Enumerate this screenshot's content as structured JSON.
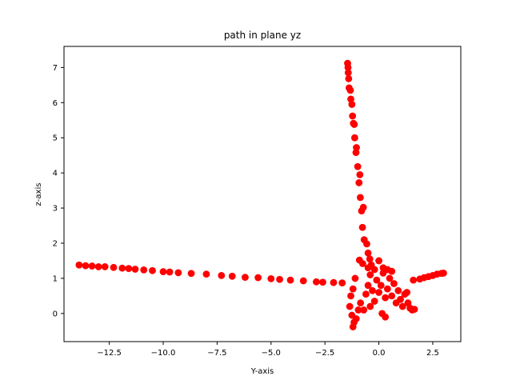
{
  "chart_data": {
    "type": "scatter",
    "title": "path in plane yz",
    "xlabel": "Y-axis",
    "ylabel": "z-axis",
    "xlim": [
      -14.6,
      3.8
    ],
    "ylim": [
      -0.8,
      7.6
    ],
    "xticks": [
      -12.5,
      -10.0,
      -7.5,
      -5.0,
      -2.5,
      0.0,
      2.5
    ],
    "xtick_labels": [
      "−12.5",
      "−10.0",
      "−7.5",
      "−5.0",
      "−2.5",
      "0.0",
      "2.5"
    ],
    "yticks": [
      0,
      1,
      2,
      3,
      4,
      5,
      6,
      7
    ],
    "ytick_labels": [
      "0",
      "1",
      "2",
      "3",
      "4",
      "5",
      "6",
      "7"
    ],
    "grid": false,
    "series": [
      {
        "color": "#ff0000",
        "marker": "circle",
        "points": [
          [
            -13.9,
            1.38
          ],
          [
            -13.6,
            1.36
          ],
          [
            -13.3,
            1.35
          ],
          [
            -13.0,
            1.33
          ],
          [
            -12.7,
            1.33
          ],
          [
            -12.3,
            1.31
          ],
          [
            -11.9,
            1.29
          ],
          [
            -11.6,
            1.28
          ],
          [
            -11.3,
            1.26
          ],
          [
            -10.9,
            1.24
          ],
          [
            -10.5,
            1.22
          ],
          [
            -10.0,
            1.19
          ],
          [
            -9.7,
            1.18
          ],
          [
            -9.3,
            1.16
          ],
          [
            -8.7,
            1.14
          ],
          [
            -8.0,
            1.12
          ],
          [
            -7.3,
            1.08
          ],
          [
            -6.8,
            1.06
          ],
          [
            -6.2,
            1.03
          ],
          [
            -5.6,
            1.02
          ],
          [
            -5.0,
            0.99
          ],
          [
            -4.6,
            0.97
          ],
          [
            -4.1,
            0.95
          ],
          [
            -3.5,
            0.93
          ],
          [
            -2.9,
            0.9
          ],
          [
            -2.6,
            0.89
          ],
          [
            -2.1,
            0.88
          ],
          [
            -1.7,
            0.87
          ],
          [
            -1.45,
            7.12
          ],
          [
            -1.43,
            7.0
          ],
          [
            -1.42,
            6.85
          ],
          [
            -1.4,
            6.68
          ],
          [
            -1.38,
            6.42
          ],
          [
            -1.32,
            6.35
          ],
          [
            -1.3,
            6.1
          ],
          [
            -1.25,
            5.95
          ],
          [
            -1.22,
            5.62
          ],
          [
            -1.18,
            5.41
          ],
          [
            -1.14,
            5.38
          ],
          [
            -1.12,
            5.0
          ],
          [
            -1.04,
            4.72
          ],
          [
            -1.06,
            4.58
          ],
          [
            -0.98,
            4.18
          ],
          [
            -0.88,
            3.95
          ],
          [
            -0.92,
            3.72
          ],
          [
            -0.86,
            3.3
          ],
          [
            -0.72,
            3.02
          ],
          [
            -0.8,
            2.92
          ],
          [
            -0.76,
            2.45
          ],
          [
            -0.68,
            2.1
          ],
          [
            -0.56,
            1.98
          ],
          [
            -0.5,
            1.72
          ],
          [
            -0.42,
            1.55
          ],
          [
            -0.35,
            1.38
          ],
          [
            -0.75,
            1.42
          ],
          [
            -0.9,
            1.52
          ],
          [
            -1.1,
            1.0
          ],
          [
            -1.2,
            0.7
          ],
          [
            -1.3,
            0.5
          ],
          [
            -1.35,
            0.2
          ],
          [
            -1.25,
            -0.05
          ],
          [
            -1.15,
            -0.25
          ],
          [
            -1.2,
            -0.38
          ],
          [
            -1.05,
            -0.15
          ],
          [
            -0.95,
            0.1
          ],
          [
            -0.85,
            0.3
          ],
          [
            -0.6,
            0.55
          ],
          [
            -0.5,
            0.8
          ],
          [
            -0.4,
            1.1
          ],
          [
            -0.3,
            0.65
          ],
          [
            -0.2,
            0.35
          ],
          [
            -0.1,
            0.95
          ],
          [
            0.0,
            0.6
          ],
          [
            0.1,
            0.8
          ],
          [
            0.2,
            1.15
          ],
          [
            0.3,
            0.45
          ],
          [
            0.4,
            0.7
          ],
          [
            0.5,
            1.0
          ],
          [
            0.6,
            0.5
          ],
          [
            0.7,
            0.85
          ],
          [
            0.8,
            0.3
          ],
          [
            0.9,
            0.65
          ],
          [
            1.0,
            0.4
          ],
          [
            1.1,
            0.2
          ],
          [
            1.2,
            0.55
          ],
          [
            1.3,
            0.6
          ],
          [
            1.35,
            0.3
          ],
          [
            1.45,
            0.15
          ],
          [
            1.55,
            0.1
          ],
          [
            1.65,
            0.12
          ],
          [
            0.2,
            1.3
          ],
          [
            0.0,
            1.5
          ],
          [
            -0.2,
            1.25
          ],
          [
            0.4,
            1.25
          ],
          [
            -0.4,
            0.2
          ],
          [
            -0.7,
            0.1
          ],
          [
            0.15,
            0.0
          ],
          [
            0.3,
            -0.1
          ],
          [
            -0.5,
            1.3
          ],
          [
            0.6,
            1.2
          ],
          [
            1.6,
            0.95
          ],
          [
            1.9,
            0.98
          ],
          [
            2.1,
            1.02
          ],
          [
            2.3,
            1.05
          ],
          [
            2.5,
            1.08
          ],
          [
            2.7,
            1.12
          ],
          [
            2.9,
            1.14
          ],
          [
            3.0,
            1.15
          ]
        ]
      }
    ]
  }
}
